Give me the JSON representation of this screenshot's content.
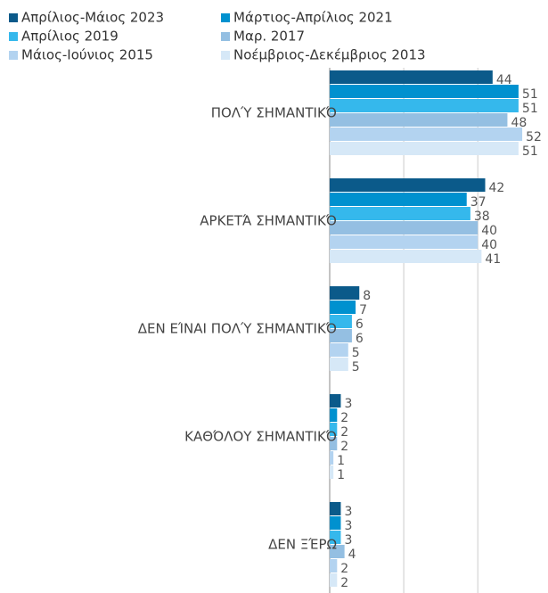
{
  "chart_data": {
    "type": "hbar",
    "categories": [
      "ΠΟΛΎ ΣΗΜΑΝΤΙΚΌ",
      "ΑΡΚΕΤΆ ΣΗΜΑΝΤΙΚΌ",
      "ΔΕΝ ΕΊΝΑΙ ΠΟΛΎ ΣΗΜΑΝΤΙΚΌ",
      "ΚΑΘΌΛΟΥ ΣΗΜΑΝΤΙΚΌ",
      "ΔΕΝ ΞΈΡΩ"
    ],
    "series": [
      {
        "name": "Απρίλιος-Μάιος 2023",
        "color": "#0b5a8a",
        "values": [
          44,
          42,
          8,
          3,
          3
        ]
      },
      {
        "name": "Μάρτιος-Απρίλιος 2021",
        "color": "#0091cf",
        "values": [
          51,
          37,
          7,
          2,
          3
        ]
      },
      {
        "name": "Απρίλιος 2019",
        "color": "#35b8ec",
        "values": [
          51,
          38,
          6,
          2,
          3
        ]
      },
      {
        "name": "Μαρ. 2017",
        "color": "#94bfe2",
        "values": [
          48,
          40,
          6,
          2,
          4
        ]
      },
      {
        "name": "Μάιος-Ιούνιος 2015",
        "color": "#b3d3f0",
        "values": [
          52,
          40,
          5,
          1,
          2
        ]
      },
      {
        "name": "Νοέμβριος-Δεκέμβριος 2013",
        "color": "#d6e8f7",
        "values": [
          51,
          41,
          5,
          1,
          2
        ]
      }
    ],
    "xlim": [
      0,
      58
    ],
    "xgrid": [
      0,
      20,
      40
    ],
    "grid": true
  }
}
